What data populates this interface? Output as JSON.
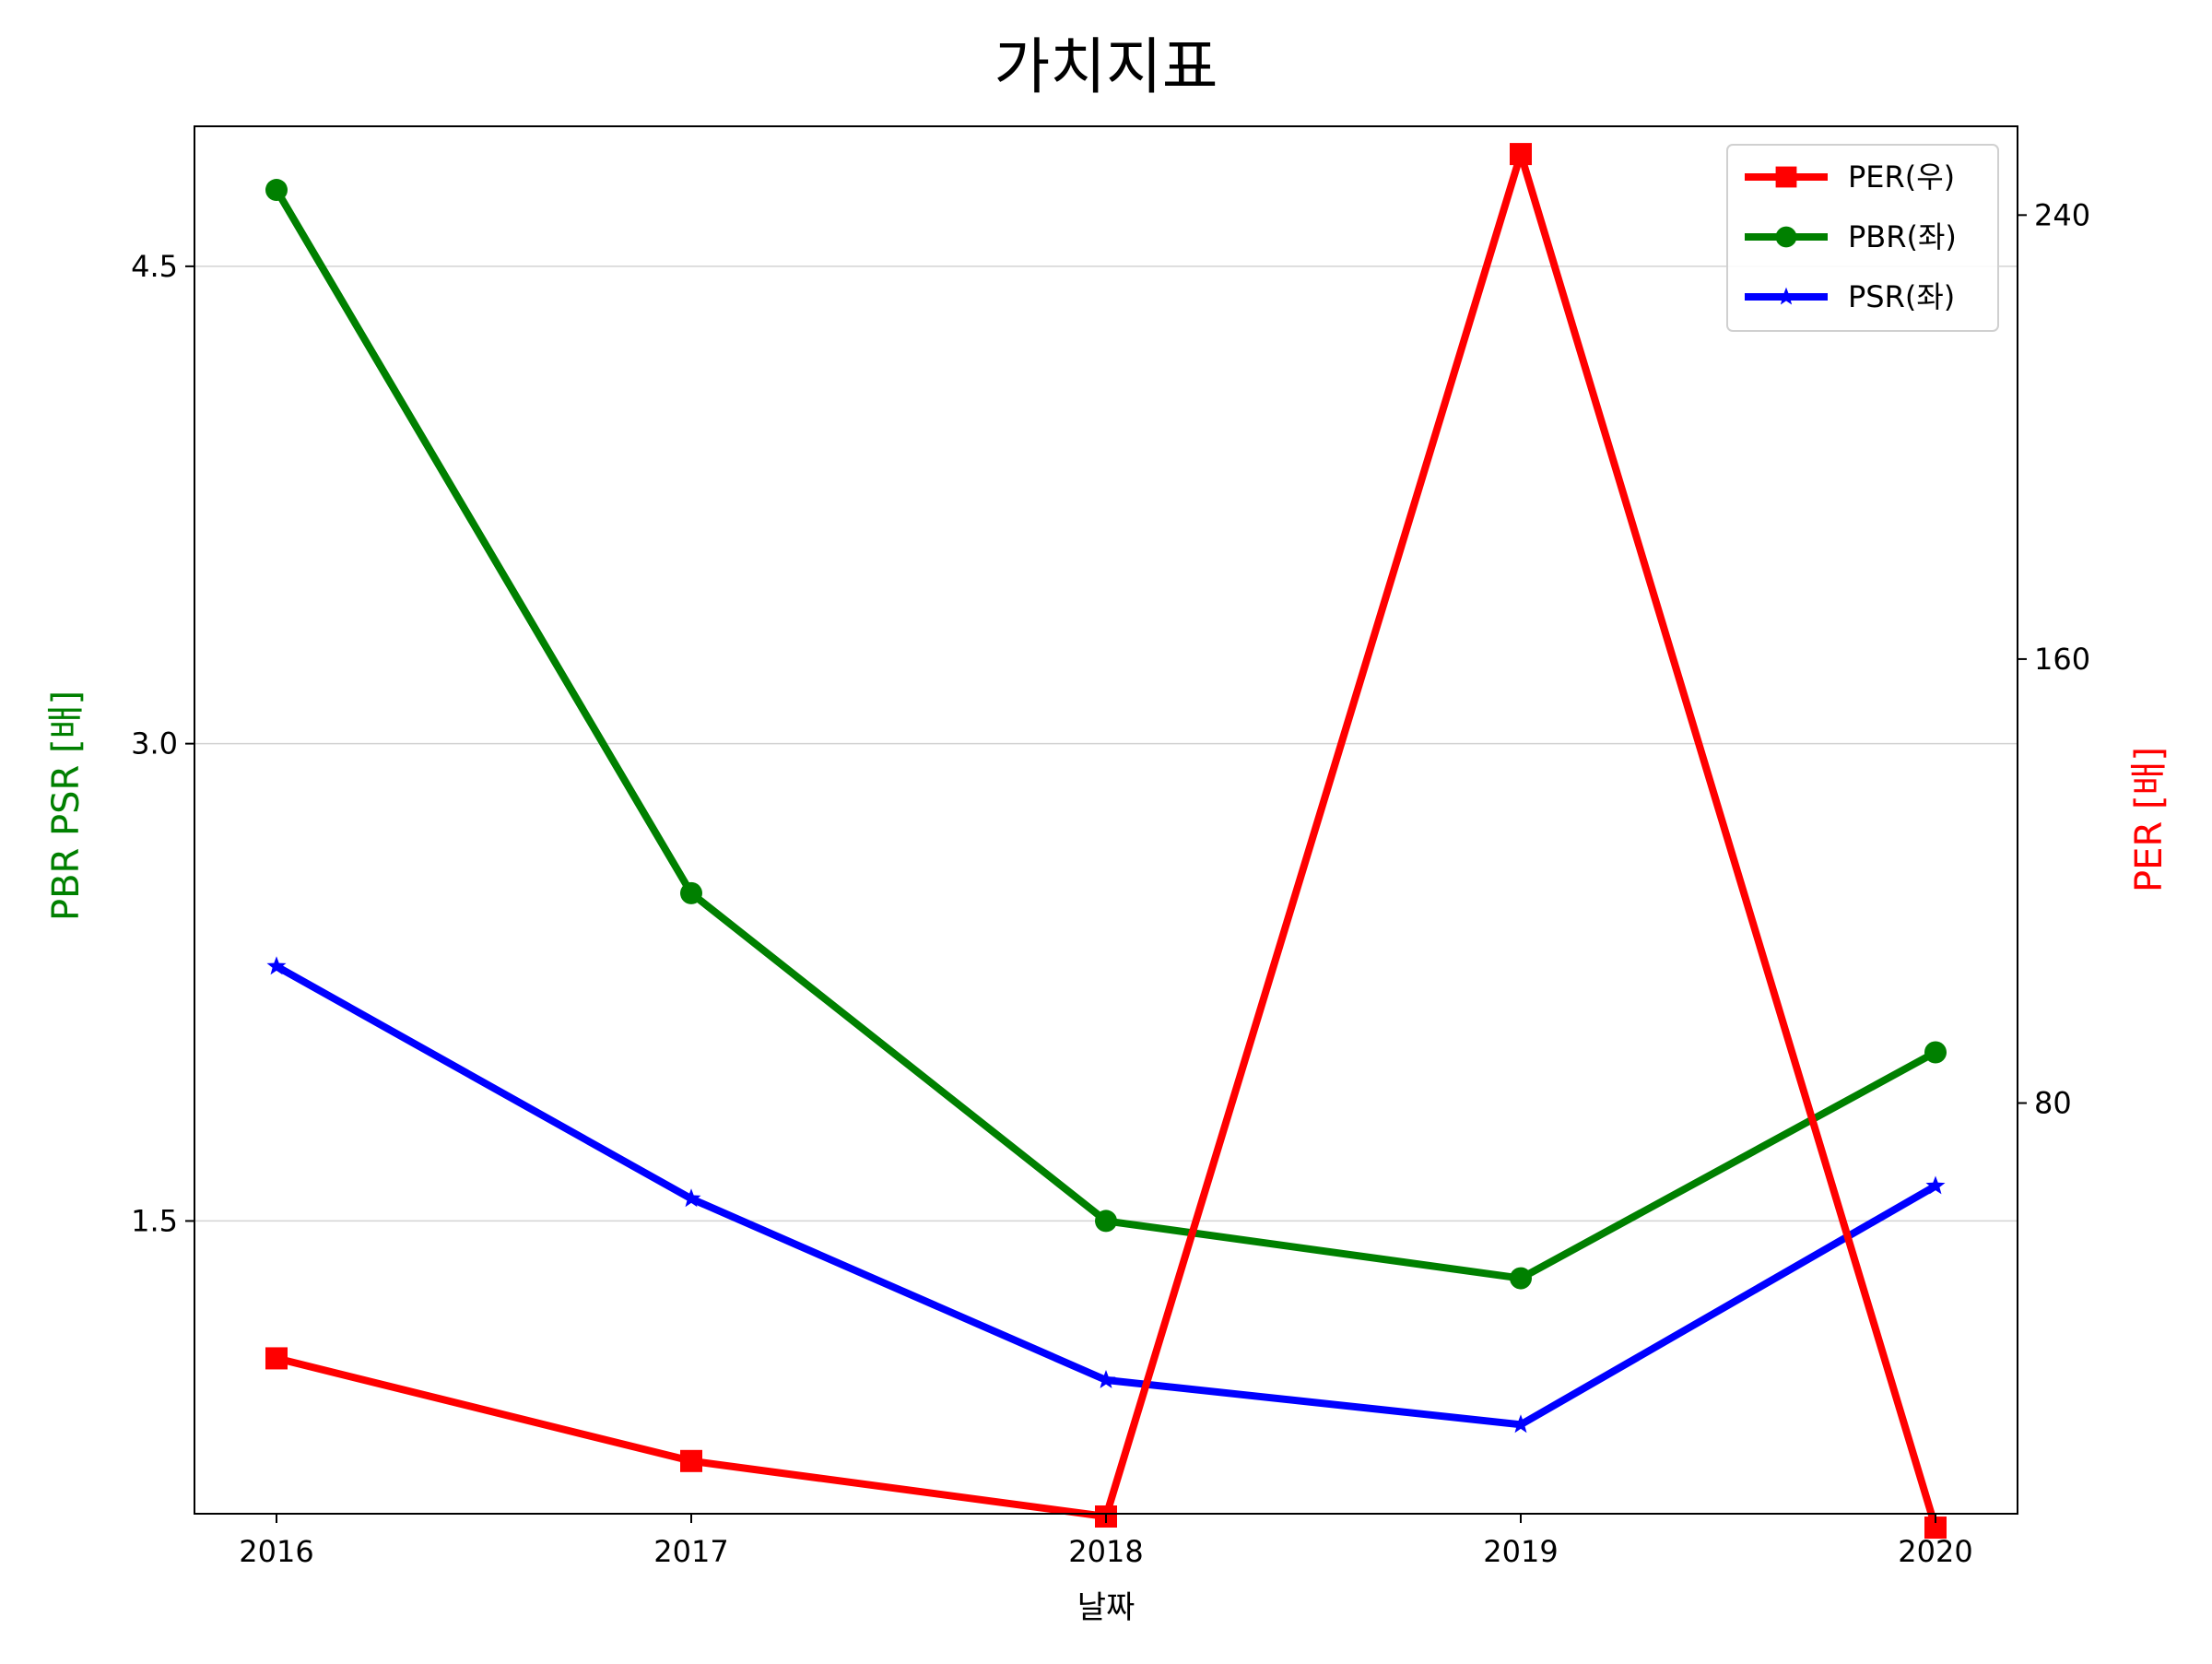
{
  "chart_data": {
    "type": "line",
    "title": "가치지표",
    "xlabel": "날짜",
    "ylabel_left": "PBR PSR [배]",
    "ylabel_right": "PER [배]",
    "categories": [
      "2016",
      "2017",
      "2018",
      "2019",
      "2020"
    ],
    "left_axis": {
      "ylim": [
        0.58,
        4.94
      ],
      "ticks": [
        1.5,
        3.0,
        4.5
      ],
      "tick_labels": [
        "1.5",
        "3.0",
        "4.5"
      ],
      "grid": true
    },
    "right_axis": {
      "ylim": [
        6,
        256
      ],
      "ticks": [
        80,
        160,
        240
      ],
      "tick_labels": [
        "80",
        "160",
        "240"
      ]
    },
    "series": [
      {
        "name": "PER(우)",
        "axis": "right",
        "color": "#ff0000",
        "marker": "square",
        "values": [
          34.0,
          15.5,
          5.5,
          251.0,
          3.5
        ]
      },
      {
        "name": "PBR(좌)",
        "axis": "left",
        "color": "#008000",
        "marker": "circle",
        "values": [
          4.74,
          2.53,
          1.5,
          1.32,
          2.03
        ]
      },
      {
        "name": "PSR(좌)",
        "axis": "left",
        "color": "#0000ff",
        "marker": "star",
        "values": [
          2.3,
          1.57,
          1.0,
          0.86,
          1.61
        ]
      }
    ],
    "legend_position": "top-right",
    "colors": {
      "left_label": "#008000",
      "right_label": "#ff0000",
      "grid": "#d3d3d3",
      "axis": "#000000"
    }
  }
}
